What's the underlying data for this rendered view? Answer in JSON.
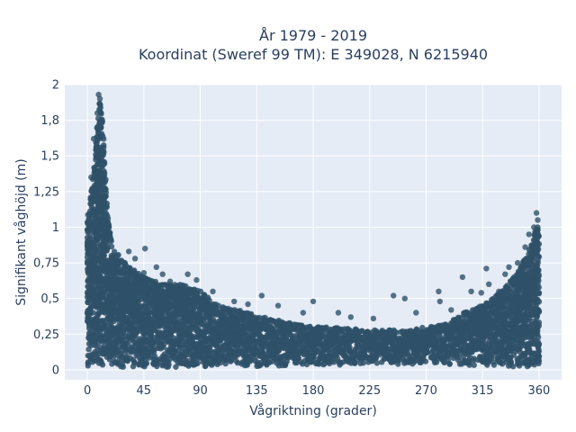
{
  "chart_data": {
    "type": "scatter",
    "title": [
      "År 1979 - 2019",
      "Koordinat (Sweref 99 TM): E 349028, N 6215940"
    ],
    "xlabel": "Vågriktning (grader)",
    "ylabel": "Signifikant våghöjd (m)",
    "xlim": [
      -18,
      378
    ],
    "ylim": [
      -0.07,
      2.0
    ],
    "x_ticks": [
      0,
      45,
      90,
      135,
      180,
      225,
      270,
      315,
      360
    ],
    "x_tick_labels": [
      "0",
      "45",
      "90",
      "135",
      "180",
      "225",
      "270",
      "315",
      "360"
    ],
    "y_ticks": [
      0,
      0.25,
      0.5,
      0.75,
      1,
      1.25,
      1.5,
      1.75,
      2
    ],
    "y_tick_labels": [
      "0",
      "0,25",
      "0,5",
      "0,75",
      "1",
      "1,25",
      "1,5",
      "1,8",
      "2"
    ],
    "grid": true,
    "background_color": "#e5ecf6",
    "marker_color": "#2f5169",
    "series": [
      {
        "envelope": {
          "x": [
            0,
            3,
            6,
            8,
            10,
            12,
            14,
            16,
            20,
            30,
            45,
            60,
            75,
            90,
            105,
            120,
            135,
            150,
            165,
            180,
            195,
            210,
            225,
            240,
            255,
            270,
            285,
            300,
            315,
            330,
            340,
            350,
            355,
            358,
            360
          ],
          "y_max": [
            1.05,
            1.25,
            1.5,
            1.75,
            1.9,
            1.75,
            1.4,
            1.1,
            0.85,
            0.75,
            0.65,
            0.6,
            0.6,
            0.55,
            0.45,
            0.42,
            0.38,
            0.35,
            0.32,
            0.3,
            0.3,
            0.29,
            0.28,
            0.28,
            0.28,
            0.3,
            0.32,
            0.4,
            0.45,
            0.55,
            0.65,
            0.8,
            0.92,
            1.0,
            1.0
          ],
          "y_min": [
            0.02,
            0.02,
            0.02,
            0.02,
            0.02,
            0.02,
            0.02,
            0.02,
            0.02,
            0.02,
            0.02,
            0.02,
            0.02,
            0.02,
            0.02,
            0.02,
            0.02,
            0.02,
            0.03,
            0.03,
            0.03,
            0.04,
            0.04,
            0.04,
            0.04,
            0.04,
            0.04,
            0.03,
            0.03,
            0.03,
            0.02,
            0.02,
            0.02,
            0.02,
            0.02
          ]
        },
        "outliers": [
          {
            "x": 9,
            "y": 1.93
          },
          {
            "x": 10,
            "y": 1.9
          },
          {
            "x": 8,
            "y": 1.8
          },
          {
            "x": 11,
            "y": 1.75
          },
          {
            "x": 5,
            "y": 1.62
          },
          {
            "x": 7,
            "y": 1.55
          },
          {
            "x": 12,
            "y": 1.45
          },
          {
            "x": 3,
            "y": 1.35
          },
          {
            "x": 13,
            "y": 1.3
          },
          {
            "x": 46,
            "y": 0.85
          },
          {
            "x": 33,
            "y": 0.83
          },
          {
            "x": 38,
            "y": 0.78
          },
          {
            "x": 60,
            "y": 0.67
          },
          {
            "x": 80,
            "y": 0.67
          },
          {
            "x": 87,
            "y": 0.63
          },
          {
            "x": 55,
            "y": 0.72
          },
          {
            "x": 66,
            "y": 0.62
          },
          {
            "x": 100,
            "y": 0.55
          },
          {
            "x": 117,
            "y": 0.48
          },
          {
            "x": 139,
            "y": 0.52
          },
          {
            "x": 128,
            "y": 0.46
          },
          {
            "x": 152,
            "y": 0.45
          },
          {
            "x": 180,
            "y": 0.48
          },
          {
            "x": 172,
            "y": 0.4
          },
          {
            "x": 200,
            "y": 0.4
          },
          {
            "x": 210,
            "y": 0.37
          },
          {
            "x": 228,
            "y": 0.36
          },
          {
            "x": 244,
            "y": 0.52
          },
          {
            "x": 253,
            "y": 0.5
          },
          {
            "x": 262,
            "y": 0.4
          },
          {
            "x": 280,
            "y": 0.55
          },
          {
            "x": 281,
            "y": 0.48
          },
          {
            "x": 290,
            "y": 0.42
          },
          {
            "x": 299,
            "y": 0.65
          },
          {
            "x": 306,
            "y": 0.55
          },
          {
            "x": 314,
            "y": 0.54
          },
          {
            "x": 318,
            "y": 0.71
          },
          {
            "x": 320,
            "y": 0.6
          },
          {
            "x": 328,
            "y": 0.55
          },
          {
            "x": 333,
            "y": 0.67
          },
          {
            "x": 336,
            "y": 0.72
          },
          {
            "x": 343,
            "y": 0.75
          },
          {
            "x": 345,
            "y": 0.7
          },
          {
            "x": 349,
            "y": 0.86
          },
          {
            "x": 352,
            "y": 0.95
          },
          {
            "x": 356,
            "y": 1.0
          },
          {
            "x": 358,
            "y": 1.1
          },
          {
            "x": 359,
            "y": 1.05
          },
          {
            "x": 45,
            "y": 0.68
          },
          {
            "x": 24,
            "y": 0.8
          },
          {
            "x": 110,
            "y": 0.43
          }
        ]
      }
    ]
  }
}
